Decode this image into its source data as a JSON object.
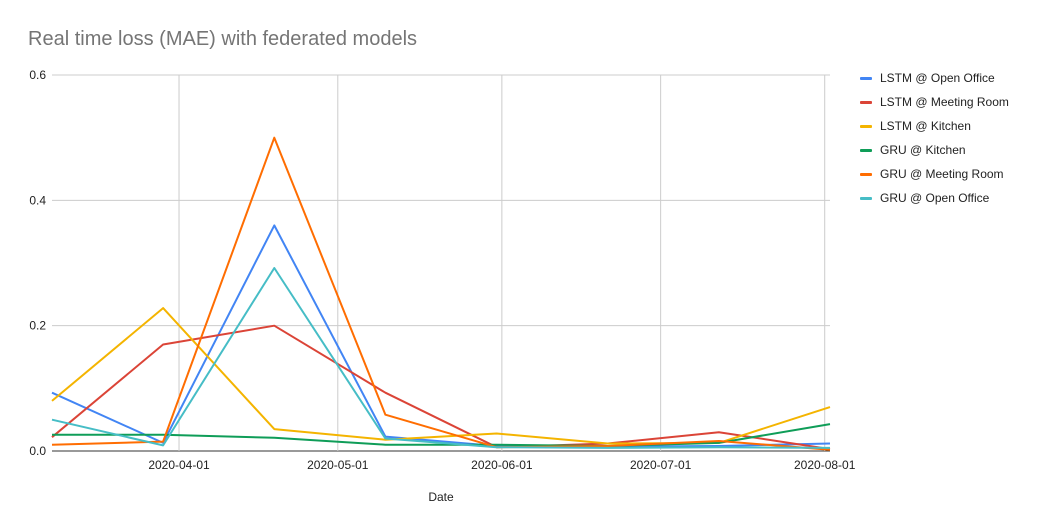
{
  "chart_data": {
    "type": "line",
    "title": "Real time loss (MAE) with federated models",
    "xlabel": "Date",
    "ylabel": "",
    "ylim": [
      0,
      0.6
    ],
    "yticks": [
      0,
      0.2,
      0.4,
      0.6
    ],
    "ytick_labels": [
      "0.0",
      "0.2",
      "0.4",
      "0.6"
    ],
    "xlim": [
      "2020-03-08",
      "2020-08-02"
    ],
    "xticks": [
      "2020-04-01",
      "2020-05-01",
      "2020-06-01",
      "2020-07-01",
      "2020-08-01"
    ],
    "x": [
      "2020-03-08",
      "2020-03-29",
      "2020-04-19",
      "2020-05-10",
      "2020-05-31",
      "2020-06-21",
      "2020-07-12",
      "2020-08-02"
    ],
    "grid": true,
    "legend_position": "right",
    "series": [
      {
        "name": "LSTM @ Open Office",
        "color": "#4285F4",
        "values": [
          0.093,
          0.013,
          0.36,
          0.023,
          0.008,
          0.007,
          0.008,
          0.012
        ]
      },
      {
        "name": "LSTM @ Meeting Room",
        "color": "#DB4437",
        "values": [
          0.022,
          0.17,
          0.2,
          0.093,
          0.006,
          0.012,
          0.03,
          0.003
        ]
      },
      {
        "name": "LSTM @ Kitchen",
        "color": "#F4B400",
        "values": [
          0.08,
          0.228,
          0.035,
          0.018,
          0.028,
          0.012,
          0.013,
          0.07
        ]
      },
      {
        "name": "GRU @ Kitchen",
        "color": "#0F9D58",
        "values": [
          0.026,
          0.026,
          0.021,
          0.01,
          0.01,
          0.008,
          0.013,
          0.043
        ]
      },
      {
        "name": "GRU @ Meeting Room",
        "color": "#FF6D01",
        "values": [
          0.01,
          0.015,
          0.5,
          0.058,
          0.006,
          0.008,
          0.016,
          0.002
        ]
      },
      {
        "name": "GRU @ Open Office",
        "color": "#46BDC6",
        "values": [
          0.05,
          0.009,
          0.292,
          0.02,
          0.006,
          0.005,
          0.006,
          0.005
        ]
      }
    ]
  }
}
